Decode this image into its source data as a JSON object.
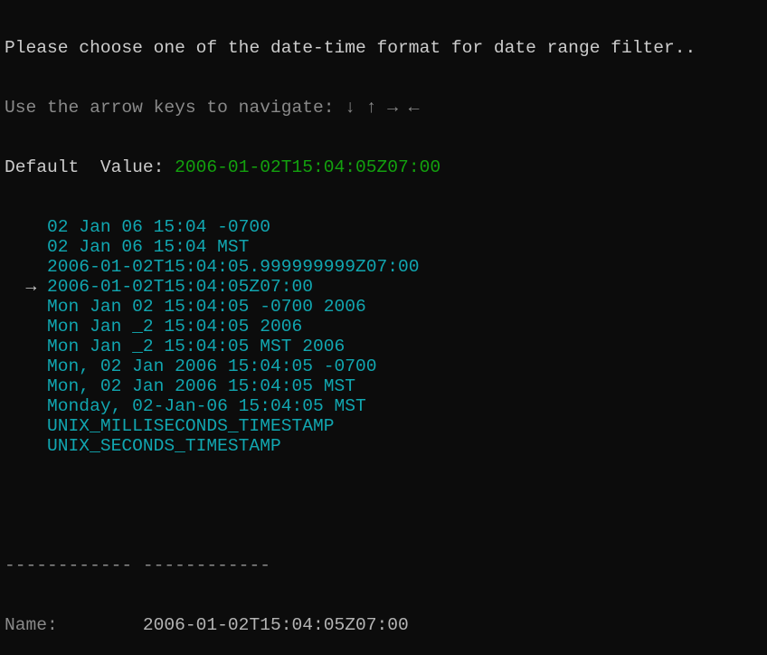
{
  "prompt": "Please choose one of the date-time format for date range filter..",
  "hint": "Use the arrow keys to navigate: ↓ ↑ → ←",
  "default_label": "Default  Value: ",
  "default_value": "2006-01-02T15:04:05Z07:00",
  "selected_index": 3,
  "cursor": "→",
  "options": [
    "02 Jan 06 15:04 -0700",
    "02 Jan 06 15:04 MST",
    "2006-01-02T15:04:05.999999999Z07:00",
    "2006-01-02T15:04:05Z07:00",
    "Mon Jan 02 15:04:05 -0700 2006",
    "Mon Jan _2 15:04:05 2006",
    "Mon Jan _2 15:04:05 MST 2006",
    "Mon, 02 Jan 2006 15:04:05 -0700",
    "Mon, 02 Jan 2006 15:04:05 MST",
    "Monday, 02-Jan-06 15:04:05 MST",
    "UNIX_MILLISECONDS_TIMESTAMP",
    "UNIX_SECONDS_TIMESTAMP"
  ],
  "separator": "------------ ------------",
  "details": {
    "name_label": "Name:        ",
    "name_value": "2006-01-02T15:04:05Z07:00"
  },
  "colors": {
    "background": "#0c0c0c",
    "default_value": "#13a10e",
    "options": "#11a6b0",
    "hint": "#8a8a8a"
  }
}
